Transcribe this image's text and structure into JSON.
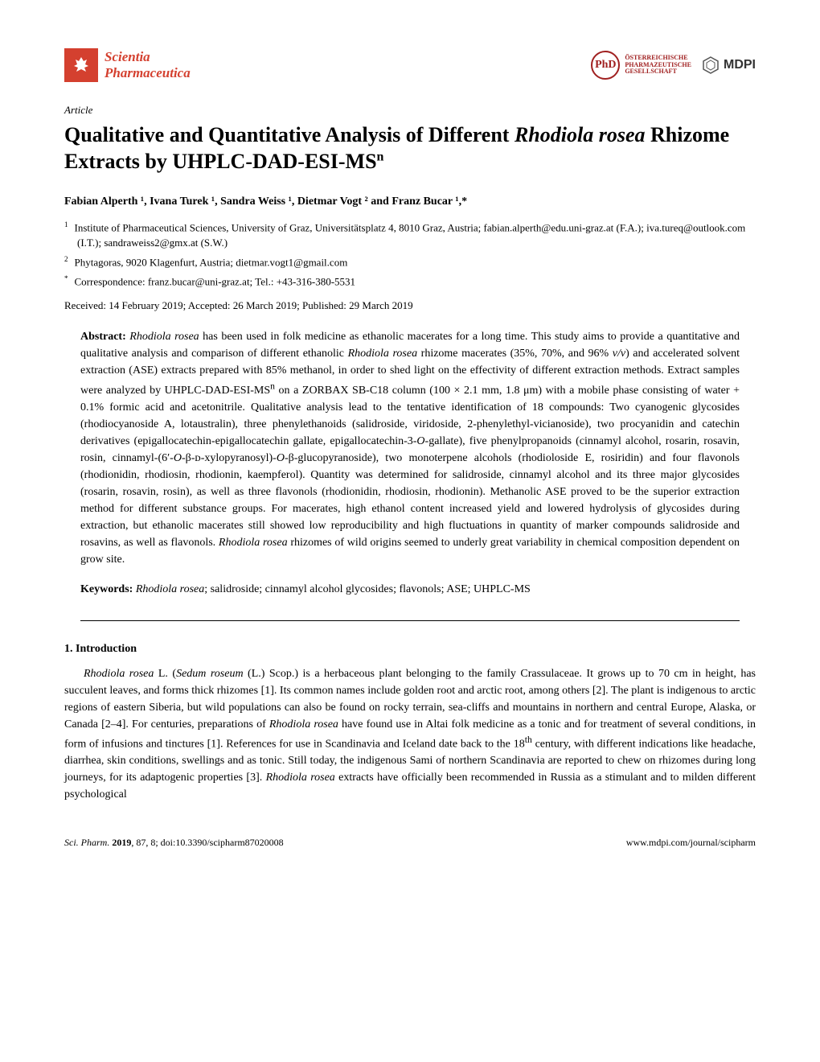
{
  "header": {
    "journal_name_line1": "Scientia",
    "journal_name_line2": "Pharmaceutica",
    "oesterr_line1": "ÖSTERREICHISCHE",
    "oesterr_line2": "PHARMAZEUTISCHE",
    "oesterr_line3": "GESELLSCHAFT",
    "oesterr_abbr": "PhD",
    "mdpi": "MDPI"
  },
  "article_type": "Article",
  "title_part1": "Qualitative and Quantitative Analysis of Different ",
  "title_italic": "Rhodiola rosea",
  "title_part2": " Rhizome Extracts by UHPLC-DAD-ESI-MS",
  "title_sup": "n",
  "authors": "Fabian Alperth ¹, Ivana Turek ¹, Sandra Weiss ¹, Dietmar Vogt ² and Franz Bucar ¹,*",
  "affiliations": [
    {
      "num": "1",
      "text": "Institute of Pharmaceutical Sciences, University of Graz, Universitätsplatz 4, 8010 Graz, Austria; fabian.alperth@edu.uni-graz.at (F.A.); iva.tureq@outlook.com (I.T.); sandraweiss2@gmx.at (S.W.)"
    },
    {
      "num": "2",
      "text": "Phytagoras, 9020 Klagenfurt, Austria; dietmar.vogt1@gmail.com"
    },
    {
      "num": "*",
      "text": "Correspondence: franz.bucar@uni-graz.at; Tel.: +43-316-380-5531"
    }
  ],
  "dates": "Received: 14 February 2019; Accepted: 26 March 2019; Published: 29 March 2019",
  "abstract": {
    "label": "Abstract: ",
    "text_html": "<span class=\"italic\">Rhodiola rosea</span> has been used in folk medicine as ethanolic macerates for a long time. This study aims to provide a quantitative and qualitative analysis and comparison of different ethanolic <span class=\"italic\">Rhodiola rosea</span> rhizome macerates (35%, 70%, and 96% <span class=\"italic\">v/v</span>) and accelerated solvent extraction (ASE) extracts prepared with 85% methanol, in order to shed light on the effectivity of different extraction methods. Extract samples were analyzed by UHPLC-DAD-ESI-MS<sup>n</sup> on a ZORBAX SB-C18 column (100 × 2.1 mm, 1.8 μm) with a mobile phase consisting of water + 0.1% formic acid and acetonitrile. Qualitative analysis lead to the tentative identification of 18 compounds: Two cyanogenic glycosides (rhodiocyanoside A, lotaustralin), three phenylethanoids (salidroside, viridoside, 2-phenylethyl-vicianoside), two procyanidin and catechin derivatives (epigallocatechin-epigallocatechin gallate, epigallocatechin-3-<span class=\"italic\">O</span>-gallate), five phenylpropanoids (cinnamyl alcohol, rosarin, rosavin, rosin, cinnamyl-(6′-<span class=\"italic\">O</span>-β-ᴅ-xylopyranosyl)-<span class=\"italic\">O</span>-β-glucopyranoside), two monoterpene alcohols (rhodioloside E, rosiridin) and four flavonols (rhodionidin, rhodiosin, rhodionin, kaempferol). Quantity was determined for salidroside, cinnamyl alcohol and its three major glycosides (rosarin, rosavin, rosin), as well as three flavonols (rhodionidin, rhodiosin, rhodionin). Methanolic ASE proved to be the superior extraction method for different substance groups. For macerates, high ethanol content increased yield and lowered hydrolysis of glycosides during extraction, but ethanolic macerates still showed low reproducibility and high fluctuations in quantity of marker compounds salidroside and rosavins, as well as flavonols. <span class=\"italic\">Rhodiola rosea</span> rhizomes of wild origins seemed to underly great variability in chemical composition dependent on grow site."
  },
  "keywords": {
    "label": "Keywords: ",
    "text_html": "<span class=\"italic\">Rhodiola rosea</span>; salidroside; cinnamyl alcohol glycosides; flavonols; ASE; UHPLC-MS"
  },
  "section": {
    "heading": "1. Introduction",
    "body_html": "<span class=\"italic\">Rhodiola rosea</span> L. (<span class=\"italic\">Sedum roseum</span> (L.) Scop.) is a herbaceous plant belonging to the family Crassulaceae. It grows up to 70 cm in height, has succulent leaves, and forms thick rhizomes [1]. Its common names include golden root and arctic root, among others [2]. The plant is indigenous to arctic regions of eastern Siberia, but wild populations can also be found on rocky terrain, sea-cliffs and mountains in northern and central Europe, Alaska, or Canada [2–4]. For centuries, preparations of <span class=\"italic\">Rhodiola rosea</span> have found use in Altai folk medicine as a tonic and for treatment of several conditions, in form of infusions and tinctures [1]. References for use in Scandinavia and Iceland date back to the 18<sup>th</sup> century, with different indications like headache, diarrhea, skin conditions, swellings and as tonic. Still today, the indigenous Sami of northern Scandinavia are reported to chew on rhizomes during long journeys, for its adaptogenic properties [3]. <span class=\"italic\">Rhodiola rosea</span> extracts have officially been recommended in Russia as a stimulant and to milden different psychological"
  },
  "footer": {
    "left_italic": "Sci. Pharm. ",
    "left_bold": "2019",
    "left_rest": ", 87, 8; doi:10.3390/scipharm87020008",
    "right": "www.mdpi.com/journal/scipharm"
  },
  "colors": {
    "accent_red": "#d4402f",
    "oesterr_red": "#a02020",
    "text": "#000000",
    "background": "#ffffff"
  }
}
